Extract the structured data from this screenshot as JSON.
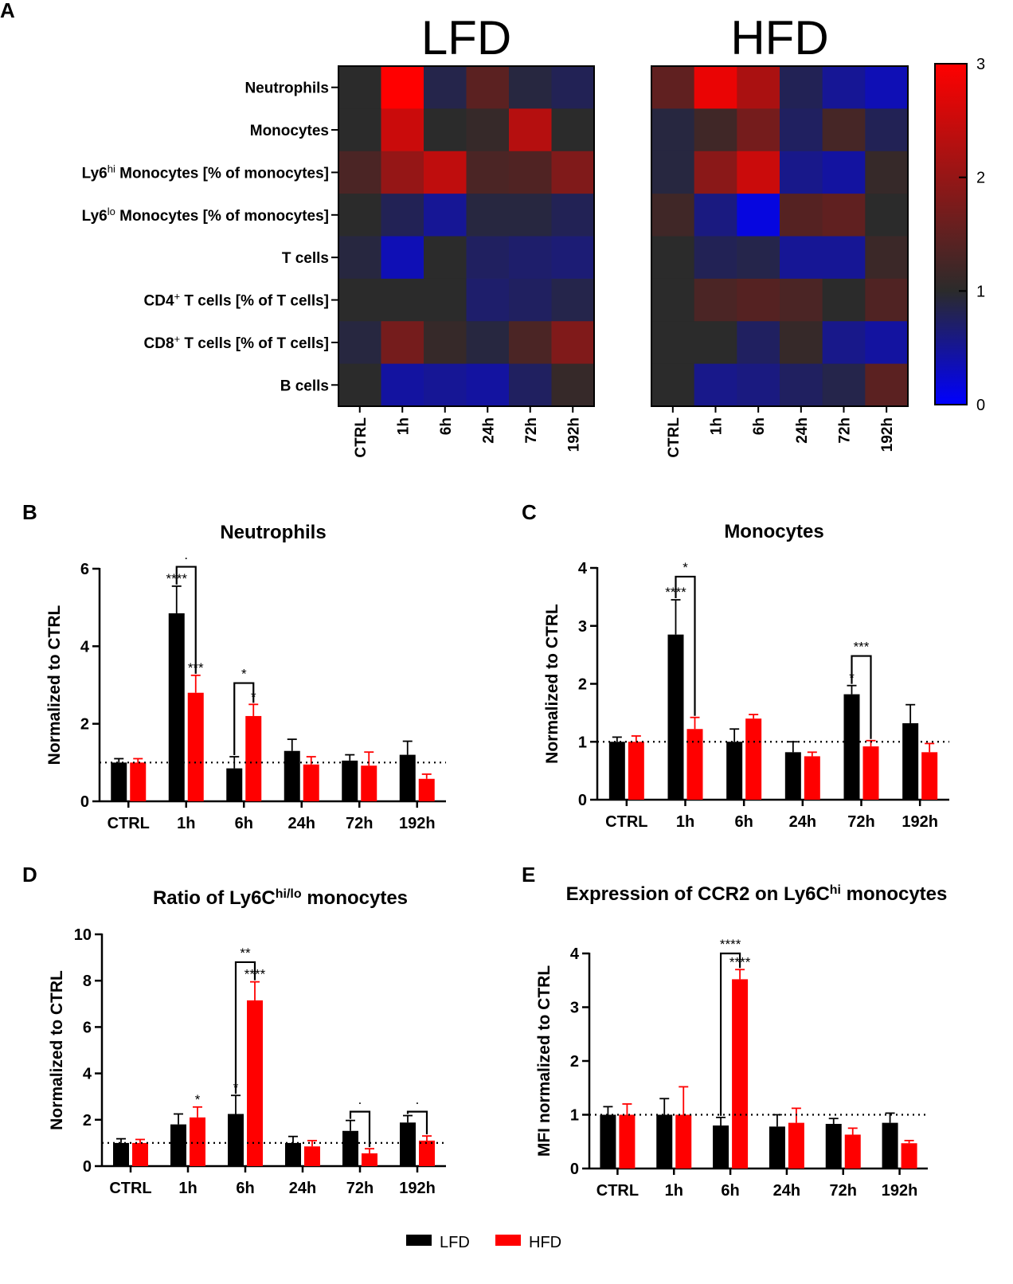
{
  "colors": {
    "lfd": "#000000",
    "hfd": "#ff0000",
    "low": "#0000ff",
    "mid": "#2b2b2b",
    "high": "#ff0000"
  },
  "panel_letters": [
    "A",
    "B",
    "C",
    "D",
    "E"
  ],
  "legend": {
    "lfd": "LFD",
    "hfd": "HFD"
  },
  "chart_data": [
    {
      "panel": "A",
      "type": "heatmap",
      "rows": [
        {
          "label": "Neutrophils"
        },
        {
          "label": "Monocytes"
        },
        {
          "label": "Ly6",
          "sup": "hi",
          "tail": " Monocytes [% of monocytes]"
        },
        {
          "label": "Ly6",
          "sup": "lo",
          "tail": " Monocytes [% of monocytes]"
        },
        {
          "label": "T cells"
        },
        {
          "label": "CD4",
          "sup": "+",
          "tail": " T cells [% of T cells]"
        },
        {
          "label": "CD8",
          "sup": "+",
          "tail": " T cells [% of T cells]"
        },
        {
          "label": "B cells"
        }
      ],
      "columns": [
        "CTRL",
        "1h",
        "6h",
        "24h",
        "72h",
        "192h"
      ],
      "colorbar": {
        "range": [
          0,
          3
        ],
        "ticks": [
          "0",
          "1",
          "2",
          "3"
        ]
      },
      "maps": [
        {
          "title": "LFD",
          "values": [
            [
              1.0,
              3.0,
              0.85,
              1.45,
              0.9,
              0.8
            ],
            [
              1.0,
              2.5,
              1.0,
              1.1,
              2.3,
              1.0
            ],
            [
              1.3,
              2.0,
              2.4,
              1.3,
              1.35,
              1.8
            ],
            [
              1.0,
              0.8,
              0.5,
              0.9,
              0.9,
              0.8
            ],
            [
              0.9,
              0.35,
              1.0,
              0.75,
              0.7,
              0.65
            ],
            [
              1.0,
              1.0,
              1.0,
              0.7,
              0.75,
              0.85
            ],
            [
              0.9,
              1.7,
              1.1,
              0.9,
              1.3,
              1.8
            ],
            [
              1.0,
              0.45,
              0.5,
              0.45,
              0.75,
              1.1
            ]
          ]
        },
        {
          "title": "HFD",
          "values": [
            [
              1.5,
              2.8,
              2.2,
              0.8,
              0.5,
              0.35
            ],
            [
              0.9,
              1.2,
              1.7,
              0.75,
              1.25,
              0.8
            ],
            [
              0.9,
              1.9,
              2.5,
              0.55,
              0.45,
              1.1
            ],
            [
              1.2,
              0.6,
              0.15,
              1.4,
              1.5,
              1.0
            ],
            [
              1.0,
              0.8,
              0.85,
              0.5,
              0.5,
              1.15
            ],
            [
              1.0,
              1.3,
              1.4,
              1.3,
              1.0,
              1.35
            ],
            [
              1.0,
              1.0,
              0.75,
              1.1,
              0.55,
              0.45
            ],
            [
              1.0,
              0.55,
              0.6,
              0.75,
              0.85,
              1.45
            ]
          ]
        }
      ]
    },
    {
      "panel": "B",
      "type": "bar",
      "title": "Neutrophils",
      "ylabel": "Normalized to CTRL",
      "categories": [
        "CTRL",
        "1h",
        "6h",
        "24h",
        "72h",
        "192h"
      ],
      "ylim": [
        0,
        6
      ],
      "yticks": [
        "0",
        "2",
        "4",
        "6"
      ],
      "reference_line": 1,
      "series": [
        {
          "name": "LFD",
          "values": [
            1.0,
            4.85,
            0.85,
            1.3,
            1.05,
            1.2
          ],
          "errors": [
            0.1,
            0.7,
            0.3,
            0.3,
            0.15,
            0.35
          ]
        },
        {
          "name": "HFD",
          "values": [
            1.0,
            2.8,
            2.2,
            0.95,
            0.92,
            0.58
          ],
          "errors": [
            0.1,
            0.45,
            0.3,
            0.2,
            0.35,
            0.12
          ]
        }
      ],
      "annotations": [
        {
          "group": 1,
          "series": 0,
          "text": "****"
        },
        {
          "group": 1,
          "series": 1,
          "text": "***"
        },
        {
          "group": 2,
          "series": 1,
          "text": "*"
        }
      ],
      "brackets": [
        {
          "group": 1,
          "y": 6.05,
          "text": "·"
        },
        {
          "group": 2,
          "y": 3.05,
          "text": "*"
        }
      ]
    },
    {
      "panel": "C",
      "type": "bar",
      "title": "Monocytes",
      "ylabel": "Normalized to CTRL",
      "categories": [
        "CTRL",
        "1h",
        "6h",
        "24h",
        "72h",
        "192h"
      ],
      "ylim": [
        0,
        4
      ],
      "yticks": [
        "0",
        "1",
        "2",
        "3",
        "4"
      ],
      "reference_line": 1,
      "series": [
        {
          "name": "LFD",
          "values": [
            1.0,
            2.85,
            1.0,
            0.82,
            1.82,
            1.32
          ],
          "errors": [
            0.08,
            0.6,
            0.22,
            0.18,
            0.15,
            0.32
          ]
        },
        {
          "name": "HFD",
          "values": [
            1.0,
            1.22,
            1.4,
            0.75,
            0.92,
            0.82
          ],
          "errors": [
            0.1,
            0.2,
            0.07,
            0.07,
            0.1,
            0.15
          ]
        }
      ],
      "annotations": [
        {
          "group": 1,
          "series": 0,
          "text": "****"
        },
        {
          "group": 4,
          "series": 0,
          "text": "*"
        }
      ],
      "brackets": [
        {
          "group": 1,
          "y": 3.85,
          "text": "*"
        },
        {
          "group": 4,
          "y": 2.48,
          "text": "***"
        }
      ]
    },
    {
      "panel": "D",
      "type": "bar",
      "title": "Ratio of Ly6C",
      "title_sup": "hi/lo",
      "title_tail": " monocytes",
      "ylabel": "Normalized to CTRL",
      "categories": [
        "CTRL",
        "1h",
        "6h",
        "24h",
        "72h",
        "192h"
      ],
      "ylim": [
        0,
        10
      ],
      "yticks": [
        "0",
        "2",
        "4",
        "6",
        "8",
        "10"
      ],
      "reference_line": 1,
      "series": [
        {
          "name": "LFD",
          "values": [
            1.0,
            1.8,
            2.25,
            1.0,
            1.52,
            1.88
          ],
          "errors": [
            0.18,
            0.45,
            0.8,
            0.28,
            0.45,
            0.3
          ]
        },
        {
          "name": "HFD",
          "values": [
            1.0,
            2.1,
            7.15,
            0.85,
            0.55,
            1.1
          ],
          "errors": [
            0.15,
            0.45,
            0.8,
            0.25,
            0.2,
            0.2
          ]
        }
      ],
      "annotations": [
        {
          "group": 1,
          "series": 1,
          "text": "*"
        },
        {
          "group": 2,
          "series": 0,
          "text": "*"
        },
        {
          "group": 2,
          "series": 1,
          "text": "****"
        }
      ],
      "brackets": [
        {
          "group": 2,
          "y": 8.8,
          "text": "**"
        },
        {
          "group": 4,
          "y": 2.35,
          "text": "·"
        },
        {
          "group": 5,
          "y": 2.35,
          "text": "·"
        }
      ]
    },
    {
      "panel": "E",
      "type": "bar",
      "title": "Expression of CCR2 on Ly6C",
      "title_sup": "hi",
      "title_tail": " monocytes",
      "ylabel": "MFI normalized to CTRL",
      "categories": [
        "CTRL",
        "1h",
        "6h",
        "24h",
        "72h",
        "192h"
      ],
      "ylim": [
        0,
        4
      ],
      "yticks": [
        "0",
        "1",
        "2",
        "3",
        "4"
      ],
      "reference_line": 1,
      "series": [
        {
          "name": "LFD",
          "values": [
            1.0,
            1.0,
            0.8,
            0.78,
            0.83,
            0.85
          ],
          "errors": [
            0.15,
            0.3,
            0.15,
            0.22,
            0.1,
            0.18
          ]
        },
        {
          "name": "HFD",
          "values": [
            1.0,
            1.0,
            3.52,
            0.85,
            0.63,
            0.47
          ],
          "errors": [
            0.2,
            0.52,
            0.18,
            0.27,
            0.12,
            0.05
          ]
        }
      ],
      "annotations": [
        {
          "group": 2,
          "series": 1,
          "text": "****"
        }
      ],
      "brackets": [
        {
          "group": 2,
          "y": 4.0,
          "text": "****"
        }
      ]
    }
  ]
}
